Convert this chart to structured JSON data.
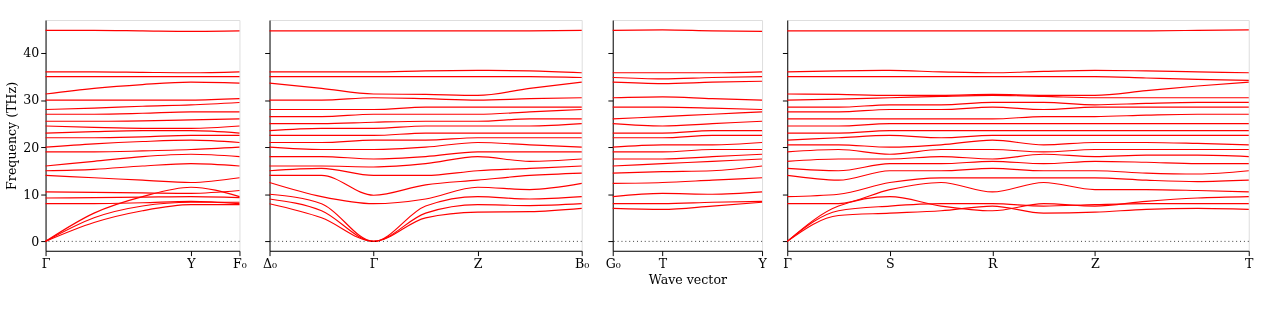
{
  "chart_data": [
    {
      "type": "line",
      "ylabel": "Frequency (THz)",
      "categories": [
        "Γ",
        null,
        null,
        "Y",
        "F₀"
      ],
      "ylim": [
        -2,
        47
      ],
      "yticks": [
        0,
        10,
        20,
        30,
        40
      ],
      "tick_labels": "xy",
      "grid": false,
      "legend": false,
      "line_style": "solid",
      "marker": "none",
      "ref_lines": [
        {
          "axis": "y",
          "value": 0,
          "line_style": "dotted",
          "color": "#000000"
        }
      ],
      "series": [
        {
          "color": "#ff0000",
          "values": [
            0,
            4,
            6.5,
            7.8,
            7.8
          ]
        },
        {
          "color": "#ff0000",
          "values": [
            0,
            5,
            7.5,
            8.3,
            8.3
          ]
        },
        {
          "color": "#ff0000",
          "values": [
            0,
            6,
            9.5,
            11.5,
            9.5
          ]
        },
        {
          "color": "#ff0000",
          "values": [
            8,
            8,
            8.2,
            8.5,
            8
          ]
        },
        {
          "color": "#ff0000",
          "values": [
            9.2,
            9.3,
            9.4,
            9.5,
            9.3
          ]
        },
        {
          "color": "#ff0000",
          "values": [
            10.5,
            10.4,
            10.3,
            10.2,
            10.8
          ]
        },
        {
          "color": "#ff0000",
          "values": [
            14,
            13.5,
            13,
            12.5,
            13.5
          ]
        },
        {
          "color": "#ff0000",
          "values": [
            15,
            15.3,
            16,
            16.5,
            16
          ]
        },
        {
          "color": "#ff0000",
          "values": [
            16,
            17,
            18,
            18.5,
            18
          ]
        },
        {
          "color": "#ff0000",
          "values": [
            19,
            19,
            19.2,
            19.5,
            20
          ]
        },
        {
          "color": "#ff0000",
          "values": [
            20,
            20.7,
            21.2,
            21.5,
            21
          ]
        },
        {
          "color": "#ff0000",
          "values": [
            22,
            22,
            22.2,
            22.5,
            22.5
          ]
        },
        {
          "color": "#ff0000",
          "values": [
            23,
            23.3,
            23.5,
            23.5,
            23
          ]
        },
        {
          "color": "#ff0000",
          "values": [
            24.5,
            24.2,
            24,
            24,
            24.5
          ]
        },
        {
          "color": "#ff0000",
          "values": [
            25.5,
            25.5,
            25.6,
            25.8,
            26
          ]
        },
        {
          "color": "#ff0000",
          "values": [
            27,
            27,
            27.2,
            27.5,
            27.5
          ]
        },
        {
          "color": "#ff0000",
          "values": [
            28,
            28.3,
            28.7,
            29,
            29.5
          ]
        },
        {
          "color": "#ff0000",
          "values": [
            30,
            30,
            30,
            30,
            30.3
          ]
        },
        {
          "color": "#ff0000",
          "values": [
            31.3,
            32.5,
            33.3,
            33.8,
            33.6
          ]
        },
        {
          "color": "#ff0000",
          "values": [
            35,
            35,
            35,
            35,
            35
          ]
        },
        {
          "color": "#ff0000",
          "values": [
            36,
            36,
            35.9,
            35.8,
            36
          ]
        },
        {
          "color": "#ff0000",
          "values": [
            44.8,
            44.8,
            44.7,
            44.6,
            44.7
          ]
        }
      ]
    },
    {
      "type": "line",
      "categories": [
        "Δ₀",
        null,
        "Γ",
        null,
        "Z",
        null,
        "B₀"
      ],
      "ylim": [
        -2,
        47
      ],
      "yticks": [
        0,
        10,
        20,
        30,
        40
      ],
      "tick_labels": "x",
      "grid": false,
      "legend": false,
      "line_style": "solid",
      "marker": "none",
      "ref_lines": [
        {
          "axis": "y",
          "value": 0,
          "line_style": "dotted",
          "color": "#000000"
        }
      ],
      "series": [
        {
          "color": "#ff0000",
          "values": [
            8,
            5,
            0,
            5,
            6.2,
            6.3,
            7
          ]
        },
        {
          "color": "#ff0000",
          "values": [
            9,
            6.5,
            0,
            6,
            7.8,
            7.6,
            8
          ]
        },
        {
          "color": "#ff0000",
          "values": [
            10,
            8,
            0,
            7.5,
            9.5,
            9,
            9.5
          ]
        },
        {
          "color": "#ff0000",
          "values": [
            12.5,
            9.5,
            8,
            9,
            11.5,
            11,
            12.3
          ]
        },
        {
          "color": "#ff0000",
          "values": [
            14,
            14,
            9.8,
            12,
            13,
            14,
            14.5
          ]
        },
        {
          "color": "#ff0000",
          "values": [
            15,
            15.5,
            14,
            14,
            15,
            15.5,
            16
          ]
        },
        {
          "color": "#ff0000",
          "values": [
            16,
            16,
            15.8,
            16.5,
            18,
            17,
            17.5
          ]
        },
        {
          "color": "#ff0000",
          "values": [
            18,
            18,
            17.5,
            18,
            19,
            19,
            19
          ]
        },
        {
          "color": "#ff0000",
          "values": [
            20,
            19.5,
            19.5,
            20,
            21,
            20.5,
            20
          ]
        },
        {
          "color": "#ff0000",
          "values": [
            21,
            21,
            21.5,
            21.5,
            22,
            22,
            22
          ]
        },
        {
          "color": "#ff0000",
          "values": [
            22.5,
            22.5,
            22.5,
            23,
            23,
            23,
            23
          ]
        },
        {
          "color": "#ff0000",
          "values": [
            23.5,
            24,
            24,
            24.5,
            24.5,
            24.5,
            25
          ]
        },
        {
          "color": "#ff0000",
          "values": [
            25,
            25,
            25.3,
            25.5,
            25.5,
            26,
            26
          ]
        },
        {
          "color": "#ff0000",
          "values": [
            26.5,
            26.5,
            27,
            27,
            27,
            27.5,
            28
          ]
        },
        {
          "color": "#ff0000",
          "values": [
            28,
            28,
            28,
            28.5,
            28.5,
            28.5,
            28.5
          ]
        },
        {
          "color": "#ff0000",
          "values": [
            30,
            30,
            30.5,
            30.3,
            30,
            30.3,
            30.5
          ]
        },
        {
          "color": "#ff0000",
          "values": [
            33.6,
            32.5,
            31.3,
            31.2,
            31,
            32.5,
            33.8
          ]
        },
        {
          "color": "#ff0000",
          "values": [
            35,
            35,
            35,
            35,
            35,
            35,
            34.8
          ]
        },
        {
          "color": "#ff0000",
          "values": [
            36,
            36,
            36,
            36.2,
            36.3,
            36.2,
            35.8
          ]
        },
        {
          "color": "#ff0000",
          "values": [
            44.7,
            44.7,
            44.7,
            44.7,
            44.7,
            44.7,
            44.8
          ]
        }
      ]
    },
    {
      "type": "line",
      "xlabel": "Wave vector",
      "categories": [
        "G₀",
        "T",
        null,
        "Y"
      ],
      "ylim": [
        -2,
        47
      ],
      "yticks": [
        0,
        10,
        20,
        30,
        40
      ],
      "tick_labels": "x",
      "grid": false,
      "legend": false,
      "line_style": "solid",
      "marker": "none",
      "ref_lines": [
        {
          "axis": "y",
          "value": 0,
          "line_style": "dotted",
          "color": "#000000"
        }
      ],
      "series": [
        {
          "color": "#ff0000",
          "values": [
            7,
            6.8,
            7.5,
            8.3
          ]
        },
        {
          "color": "#ff0000",
          "values": [
            8,
            8,
            8.3,
            8.5
          ]
        },
        {
          "color": "#ff0000",
          "values": [
            9.5,
            10.2,
            10,
            10.5
          ]
        },
        {
          "color": "#ff0000",
          "values": [
            12.3,
            12.5,
            13,
            13.5
          ]
        },
        {
          "color": "#ff0000",
          "values": [
            14.5,
            14.8,
            15,
            16
          ]
        },
        {
          "color": "#ff0000",
          "values": [
            16,
            16.5,
            17,
            17.5
          ]
        },
        {
          "color": "#ff0000",
          "values": [
            17.5,
            17.5,
            18,
            18.5
          ]
        },
        {
          "color": "#ff0000",
          "values": [
            19,
            19,
            19.5,
            19.5
          ]
        },
        {
          "color": "#ff0000",
          "values": [
            20,
            20.5,
            20.5,
            21
          ]
        },
        {
          "color": "#ff0000",
          "values": [
            22,
            22,
            22.5,
            22.5
          ]
        },
        {
          "color": "#ff0000",
          "values": [
            23,
            23,
            23.5,
            23.5
          ]
        },
        {
          "color": "#ff0000",
          "values": [
            25,
            24.5,
            25,
            25.5
          ]
        },
        {
          "color": "#ff0000",
          "values": [
            26,
            26.5,
            27,
            27.5
          ]
        },
        {
          "color": "#ff0000",
          "values": [
            28.5,
            28.5,
            28.3,
            28
          ]
        },
        {
          "color": "#ff0000",
          "values": [
            30.5,
            30.7,
            30.3,
            30
          ]
        },
        {
          "color": "#ff0000",
          "values": [
            33.8,
            33.5,
            33.8,
            34
          ]
        },
        {
          "color": "#ff0000",
          "values": [
            34.8,
            34.5,
            34.8,
            35
          ]
        },
        {
          "color": "#ff0000",
          "values": [
            35.8,
            35.8,
            35.8,
            36
          ]
        },
        {
          "color": "#ff0000",
          "values": [
            44.8,
            44.9,
            44.7,
            44.6
          ]
        }
      ]
    },
    {
      "type": "line",
      "categories": [
        "Γ",
        null,
        "S",
        null,
        "R",
        null,
        "Z",
        null,
        null,
        "T"
      ],
      "ylim": [
        -2,
        47
      ],
      "yticks": [
        0,
        10,
        20,
        30,
        40
      ],
      "tick_labels": "x",
      "grid": false,
      "legend": false,
      "line_style": "solid",
      "marker": "none",
      "ref_lines": [
        {
          "axis": "y",
          "value": 0,
          "line_style": "dotted",
          "color": "#000000"
        }
      ],
      "series": [
        {
          "color": "#ff0000",
          "values": [
            0,
            5.5,
            6,
            6.5,
            7.5,
            6,
            6.2,
            6.8,
            7,
            6.8
          ]
        },
        {
          "color": "#ff0000",
          "values": [
            0,
            6.5,
            7.5,
            8,
            8,
            7.5,
            7.8,
            8,
            8,
            8
          ]
        },
        {
          "color": "#ff0000",
          "values": [
            0,
            7.5,
            9.5,
            7.5,
            6.5,
            8,
            7.5,
            8.5,
            9.2,
            9.5
          ]
        },
        {
          "color": "#ff0000",
          "values": [
            8,
            8,
            11,
            12.5,
            10.5,
            12.5,
            11,
            11,
            10.8,
            10.5
          ]
        },
        {
          "color": "#ff0000",
          "values": [
            9.5,
            10,
            12.5,
            13.5,
            13.5,
            13.5,
            13.5,
            13,
            12.7,
            13
          ]
        },
        {
          "color": "#ff0000",
          "values": [
            14,
            13,
            15,
            15,
            15.5,
            15,
            15,
            14.5,
            14.3,
            15
          ]
        },
        {
          "color": "#ff0000",
          "values": [
            15.5,
            15,
            16.5,
            16.5,
            17,
            16.5,
            17,
            16.8,
            16.5,
            16.5
          ]
        },
        {
          "color": "#ff0000",
          "values": [
            17,
            17.5,
            17.5,
            18,
            17.5,
            18.5,
            18,
            18.3,
            18.3,
            18
          ]
        },
        {
          "color": "#ff0000",
          "values": [
            19,
            19.5,
            18.5,
            19.5,
            19.5,
            19,
            19.5,
            19.5,
            19.5,
            19.5
          ]
        },
        {
          "color": "#ff0000",
          "values": [
            20.5,
            20.5,
            20,
            20.5,
            21.5,
            20.5,
            21,
            21,
            20.8,
            20.5
          ]
        },
        {
          "color": "#ff0000",
          "values": [
            21.5,
            22,
            22.5,
            22,
            22.5,
            22.5,
            22.5,
            22.5,
            22.5,
            22.5
          ]
        },
        {
          "color": "#ff0000",
          "values": [
            23,
            23,
            23.5,
            23.5,
            23.5,
            23.5,
            23.5,
            23.5,
            23.5,
            23.5
          ]
        },
        {
          "color": "#ff0000",
          "values": [
            24.5,
            24.5,
            25,
            25,
            25,
            25,
            25,
            25,
            25,
            25
          ]
        },
        {
          "color": "#ff0000",
          "values": [
            26,
            26,
            26,
            26,
            26,
            26.5,
            26.5,
            26.8,
            27,
            27
          ]
        },
        {
          "color": "#ff0000",
          "values": [
            27.5,
            27.5,
            28,
            28,
            28.5,
            28,
            28.5,
            28.5,
            28.5,
            28.5
          ]
        },
        {
          "color": "#ff0000",
          "values": [
            28.5,
            28.5,
            29,
            29,
            29.5,
            29.5,
            29,
            29.3,
            29.5,
            29.5
          ]
        },
        {
          "color": "#ff0000",
          "values": [
            30,
            30.2,
            30.5,
            30.8,
            31,
            30.8,
            30.5,
            30.5,
            30.5,
            30.5
          ]
        },
        {
          "color": "#ff0000",
          "values": [
            31.3,
            31.2,
            31,
            31,
            31.2,
            31,
            31,
            32,
            33,
            33.8
          ]
        },
        {
          "color": "#ff0000",
          "values": [
            35,
            35,
            35,
            35,
            35,
            35,
            35,
            34.7,
            34.4,
            34.2
          ]
        },
        {
          "color": "#ff0000",
          "values": [
            36,
            36.2,
            36.3,
            36,
            35.8,
            36.1,
            36.3,
            36.2,
            36,
            35.8
          ]
        },
        {
          "color": "#ff0000",
          "values": [
            44.7,
            44.7,
            44.7,
            44.7,
            44.7,
            44.7,
            44.7,
            44.7,
            44.8,
            44.9
          ]
        }
      ]
    }
  ]
}
